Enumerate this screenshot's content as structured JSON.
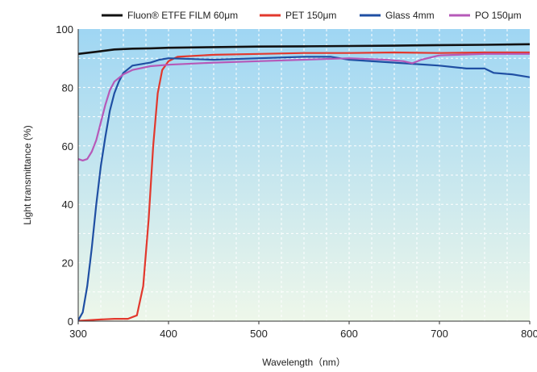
{
  "chart_data": {
    "type": "line",
    "title": "",
    "xlabel": "Wavelength（nm）",
    "ylabel": "Light transmittance (%)",
    "xlim": [
      300,
      800
    ],
    "ylim": [
      0,
      100
    ],
    "x_ticks": [
      "300",
      "400",
      "500",
      "600",
      "700",
      "800"
    ],
    "y_ticks": [
      "0",
      "20",
      "40",
      "60",
      "80",
      "100"
    ],
    "grid": true,
    "legend_position": "top",
    "background_gradient": [
      "#9fd6f3",
      "#eef7ea"
    ],
    "series": [
      {
        "name": "Fluon® ETFE FILM 60μm",
        "color": "#111111",
        "points": [
          [
            300,
            91.5
          ],
          [
            320,
            92.2
          ],
          [
            340,
            93.0
          ],
          [
            360,
            93.3
          ],
          [
            380,
            93.4
          ],
          [
            400,
            93.6
          ],
          [
            450,
            93.8
          ],
          [
            500,
            94.0
          ],
          [
            550,
            94.1
          ],
          [
            600,
            94.2
          ],
          [
            650,
            94.3
          ],
          [
            700,
            94.5
          ],
          [
            750,
            94.6
          ],
          [
            800,
            94.8
          ]
        ]
      },
      {
        "name": "PET 150μm",
        "color": "#e2382d",
        "points": [
          [
            300,
            0.1
          ],
          [
            320,
            0.5
          ],
          [
            340,
            0.8
          ],
          [
            355,
            0.8
          ],
          [
            365,
            2
          ],
          [
            372,
            12
          ],
          [
            378,
            35
          ],
          [
            383,
            60
          ],
          [
            388,
            78
          ],
          [
            393,
            86
          ],
          [
            400,
            89
          ],
          [
            410,
            90.5
          ],
          [
            450,
            91.2
          ],
          [
            500,
            91.5
          ],
          [
            550,
            91.8
          ],
          [
            600,
            91.8
          ],
          [
            650,
            92.0
          ],
          [
            700,
            91.8
          ],
          [
            750,
            92.0
          ],
          [
            800,
            92.0
          ]
        ]
      },
      {
        "name": "Glass 4mm",
        "color": "#1f4fa3",
        "points": [
          [
            300,
            0.3
          ],
          [
            305,
            3
          ],
          [
            310,
            12
          ],
          [
            315,
            25
          ],
          [
            320,
            40
          ],
          [
            325,
            53
          ],
          [
            330,
            63
          ],
          [
            335,
            72
          ],
          [
            340,
            78
          ],
          [
            345,
            82
          ],
          [
            350,
            85
          ],
          [
            360,
            87.5
          ],
          [
            370,
            88
          ],
          [
            380,
            88.5
          ],
          [
            390,
            89.5
          ],
          [
            400,
            90
          ],
          [
            450,
            89.5
          ],
          [
            500,
            90
          ],
          [
            550,
            90.5
          ],
          [
            580,
            90.5
          ],
          [
            600,
            89.5
          ],
          [
            650,
            88.5
          ],
          [
            700,
            87.5
          ],
          [
            730,
            86.5
          ],
          [
            750,
            86.5
          ],
          [
            760,
            85
          ],
          [
            780,
            84.5
          ],
          [
            800,
            83.5
          ]
        ]
      },
      {
        "name": "PO 150μm",
        "color": "#b659b8",
        "points": [
          [
            300,
            55.5
          ],
          [
            305,
            55
          ],
          [
            310,
            55.5
          ],
          [
            315,
            58
          ],
          [
            320,
            62
          ],
          [
            325,
            68
          ],
          [
            330,
            74
          ],
          [
            335,
            79
          ],
          [
            340,
            82
          ],
          [
            350,
            84.5
          ],
          [
            360,
            86
          ],
          [
            380,
            87.3
          ],
          [
            400,
            87.8
          ],
          [
            450,
            88.5
          ],
          [
            500,
            89
          ],
          [
            550,
            89.5
          ],
          [
            600,
            90
          ],
          [
            640,
            89.5
          ],
          [
            660,
            89
          ],
          [
            670,
            88.3
          ],
          [
            680,
            89.5
          ],
          [
            700,
            91
          ],
          [
            750,
            91.5
          ],
          [
            800,
            91.5
          ]
        ]
      }
    ]
  }
}
